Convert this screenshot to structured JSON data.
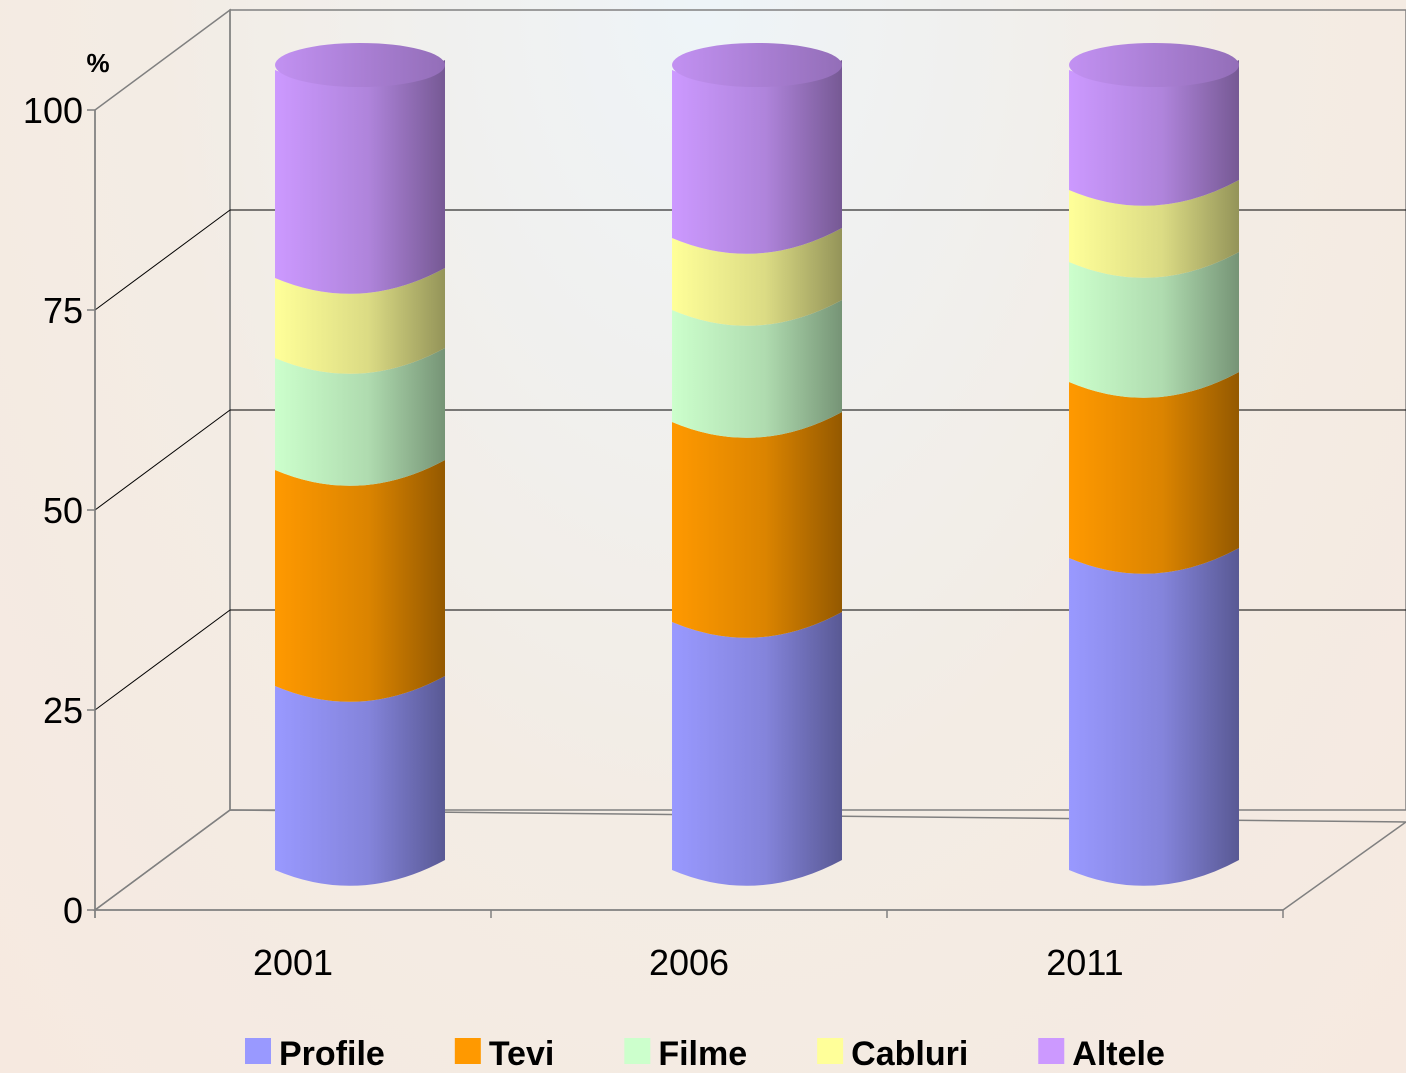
{
  "chart_data": {
    "type": "bar",
    "stacked": true,
    "style": "3d-cylinder",
    "categories": [
      "2001",
      "2006",
      "2011"
    ],
    "series": [
      {
        "name": "Profile",
        "values": [
          23,
          31,
          39
        ],
        "color": "#9999ff"
      },
      {
        "name": "Tevi",
        "values": [
          27,
          25,
          22
        ],
        "color": "#ff9900"
      },
      {
        "name": "Filme",
        "values": [
          14,
          14,
          15
        ],
        "color": "#ccffcc"
      },
      {
        "name": "Cabluri",
        "values": [
          10,
          9,
          9
        ],
        "color": "#ffff99"
      },
      {
        "name": "Altele",
        "values": [
          26,
          21,
          15
        ],
        "color": "#cc99ff"
      }
    ],
    "ylabel": "%",
    "ylim": [
      0,
      100
    ],
    "yticks": [
      "0",
      "25",
      "50",
      "75",
      "100"
    ],
    "grid": true,
    "legend": "bottom"
  }
}
